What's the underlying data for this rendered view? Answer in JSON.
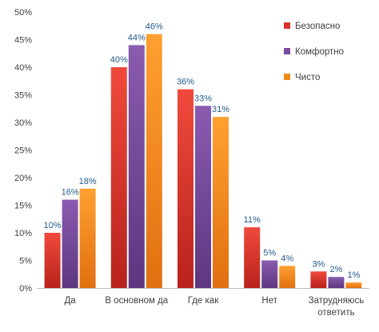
{
  "chart_data": {
    "type": "bar",
    "categories": [
      "Да",
      "В основном да",
      "Где как",
      "Нет",
      "Затрудняюсь ответить"
    ],
    "category_lines": [
      [
        "Да"
      ],
      [
        "В основном да"
      ],
      [
        "Где как"
      ],
      [
        "Нет"
      ],
      [
        "Затрудняюсь",
        "ответить"
      ]
    ],
    "series": [
      {
        "name": "Безопасно",
        "values": [
          10,
          40,
          36,
          11,
          3
        ],
        "labels": [
          "10%",
          "40%",
          "36%",
          "11%",
          "3%"
        ],
        "color": "#d9312b",
        "color_top": "#f04a3c",
        "color_bottom": "#b8221c"
      },
      {
        "name": "Комфортно",
        "values": [
          16,
          44,
          33,
          5,
          2
        ],
        "labels": [
          "16%",
          "44%",
          "33%",
          "5%",
          "2%"
        ],
        "color": "#7a4b9e",
        "color_top": "#8a5bb0",
        "color_bottom": "#5e3680"
      },
      {
        "name": "Чисто",
        "values": [
          18,
          46,
          31,
          4,
          1
        ],
        "labels": [
          "18%",
          "46%",
          "31%",
          "4%",
          "1%"
        ],
        "color": "#f08a1c",
        "color_top": "#ffa030",
        "color_bottom": "#e07010"
      }
    ],
    "y_ticks": [
      0,
      5,
      10,
      15,
      20,
      25,
      30,
      35,
      40,
      45,
      50
    ],
    "y_tick_labels": [
      "0%",
      "5%",
      "10%",
      "15%",
      "20%",
      "25%",
      "30%",
      "35%",
      "40%",
      "45%",
      "50%"
    ],
    "ylim": [
      0,
      50
    ],
    "title": "",
    "xlabel": "",
    "ylabel": "",
    "grid": false,
    "legend_position": "top-right",
    "label_color": "#1f5a8a",
    "axis_text_color": "#404040"
  }
}
